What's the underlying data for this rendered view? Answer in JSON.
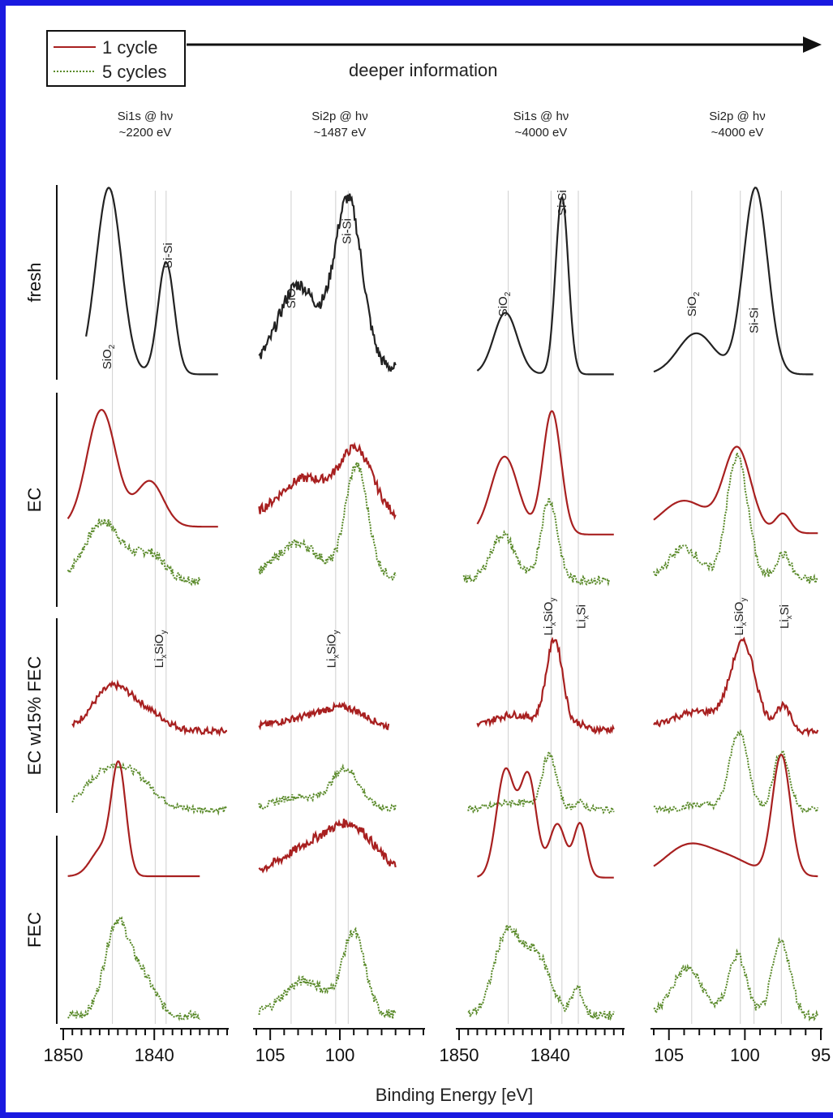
{
  "chart_data": {
    "type": "line",
    "title": "",
    "xlabel": "Binding Energy [eV]",
    "ylabel": "",
    "arrow_label": "deeper information",
    "legend": {
      "position": "top-left",
      "entries": [
        {
          "label": "1 cycle",
          "color": "#a82020",
          "style": "solid"
        },
        {
          "label": "5 cycles",
          "color": "#5a8a2a",
          "style": "dotted"
        }
      ]
    },
    "rows": [
      "fresh",
      "EC",
      "EC w15% FEC",
      "FEC"
    ],
    "row_label_prefix": {
      "fresh": "fresh",
      "EC": "EC",
      "EC w15% FEC": "EC w15% FEC",
      "FEC": "FEC"
    },
    "panels": [
      {
        "header_line1": "Si1s @ hν",
        "header_line2": "~2200 eV",
        "xlim": [
          1850,
          1832
        ],
        "ticks": [
          1850,
          1840
        ],
        "tick_labels": [
          "1850",
          "1840"
        ],
        "ref_lines": [
          1844.6,
          1839.9,
          1838.7
        ],
        "peak_labels": {
          "fresh": [
            {
              "text": "SiO",
              "sub": "2",
              "x": 1845.2
            },
            {
              "text": "Si-Si",
              "sub": "",
              "x": 1838.5
            }
          ],
          "EC w15% FEC": [
            {
              "text": "Li",
              "sub": "x",
              "after": "SiO",
              "sub2": "y",
              "x": 1839.5
            }
          ]
        },
        "traces": {
          "fresh": [
            {
              "cycle": "1",
              "x_start": 1847.5,
              "x_end": 1833.0,
              "base": 0.02,
              "peaks": [
                [
                  1845.0,
                  1.0,
                  1.4
                ],
                [
                  1838.7,
                  0.6,
                  0.9
                ]
              ]
            }
          ],
          "EC": [
            {
              "cycle": "1",
              "x_start": 1849.5,
              "x_end": 1833.0,
              "base": 0.08,
              "peaks": [
                [
                  1845.8,
                  0.9,
                  1.6
                ],
                [
                  1840.5,
                  0.35,
                  1.5
                ]
              ]
            },
            {
              "cycle": "5",
              "x_start": 1849.5,
              "x_end": 1835.0,
              "base": 0.02,
              "peaks": [
                [
                  1845.6,
                  0.45,
                  2.0
                ],
                [
                  1840.5,
                  0.2,
                  1.6
                ]
              ]
            }
          ],
          "EC w15% FEC": [
            {
              "cycle": "1",
              "x_start": 1849.0,
              "x_end": 1832.0,
              "base": 0.03,
              "peaks": [
                [
                  1844.6,
                  0.45,
                  2.2
                ],
                [
                  1840.5,
                  0.15,
                  2.0
                ]
              ]
            },
            {
              "cycle": "5",
              "x_start": 1849.0,
              "x_end": 1832.0,
              "base": 0.02,
              "peaks": [
                [
                  1845.0,
                  0.4,
                  2.4
                ],
                [
                  1841.5,
                  0.2,
                  2.0
                ]
              ]
            }
          ],
          "FEC": [
            {
              "cycle": "1",
              "x_start": 1849.5,
              "x_end": 1835.0,
              "base": 0.03,
              "peaks": [
                [
                  1843.9,
                  0.8,
                  0.8
                ],
                [
                  1845.8,
                  0.2,
                  1.2
                ]
              ]
            },
            {
              "cycle": "5",
              "x_start": 1849.5,
              "x_end": 1835.0,
              "base": 0.02,
              "peaks": [
                [
                  1844.2,
                  0.65,
                  1.3
                ],
                [
                  1841.5,
                  0.3,
                  1.5
                ]
              ]
            }
          ]
        }
      },
      {
        "header_line1": "Si2p @ hν",
        "header_line2": "~1487 eV",
        "xlim": [
          106,
          94
        ],
        "ticks": [
          105,
          100
        ],
        "tick_labels": [
          "105",
          "100"
        ],
        "ref_lines": [
          103.5,
          100.3,
          99.4
        ],
        "peak_labels": {
          "fresh": [
            {
              "text": "SiO",
              "sub": "2",
              "x": 103.5
            },
            {
              "text": "Si-Si",
              "sub": "",
              "x": 99.5
            }
          ],
          "EC w15% FEC": [
            {
              "text": "Li",
              "sub": "x",
              "after": "SiO",
              "sub2": "y",
              "x": 100.6
            }
          ]
        },
        "traces": {
          "fresh": [
            {
              "cycle": "1",
              "x_start": 105.8,
              "x_end": 96.0,
              "base": 0.05,
              "peaks": [
                [
                  103.0,
                  0.45,
                  1.4
                ],
                [
                  99.4,
                  0.9,
                  1.0
                ]
              ]
            }
          ],
          "EC": [
            {
              "cycle": "1",
              "x_start": 105.8,
              "x_end": 96.0,
              "base": 0.15,
              "peaks": [
                [
                  102.5,
                  0.3,
                  1.8
                ],
                [
                  98.8,
                  0.5,
                  1.2
                ]
              ]
            },
            {
              "cycle": "5",
              "x_start": 105.8,
              "x_end": 96.0,
              "base": 0.05,
              "peaks": [
                [
                  103.0,
                  0.25,
                  1.5
                ],
                [
                  98.8,
                  0.85,
                  0.8
                ]
              ]
            }
          ],
          "EC w15% FEC": [
            {
              "cycle": "1",
              "x_start": 105.8,
              "x_end": 96.5,
              "base": 0.05,
              "peaks": [
                [
                  102.0,
                  0.12,
                  2.5
                ],
                [
                  99.5,
                  0.15,
                  1.5
                ]
              ]
            },
            {
              "cycle": "5",
              "x_start": 105.8,
              "x_end": 96.0,
              "base": 0.03,
              "peaks": [
                [
                  103.0,
                  0.12,
                  1.5
                ],
                [
                  99.6,
                  0.4,
                  1.0
                ]
              ]
            }
          ],
          "FEC": [
            {
              "cycle": "1",
              "x_start": 105.8,
              "x_end": 96.0,
              "base": 0.05,
              "peaks": [
                [
                  102.0,
                  0.2,
                  2.0
                ],
                [
                  99.0,
                  0.3,
                  1.6
                ]
              ]
            },
            {
              "cycle": "5",
              "x_start": 105.8,
              "x_end": 96.0,
              "base": 0.03,
              "peaks": [
                [
                  102.5,
                  0.25,
                  1.5
                ],
                [
                  99.0,
                  0.6,
                  0.8
                ]
              ]
            }
          ]
        }
      },
      {
        "header_line1": "Si1s @ hν",
        "header_line2": "~4000 eV",
        "xlim": [
          1850,
          1832
        ],
        "ticks": [
          1850,
          1840
        ],
        "tick_labels": [
          "1850",
          "1840"
        ],
        "ref_lines": [
          1844.6,
          1839.9,
          1838.7,
          1836.9
        ],
        "peak_labels": {
          "fresh": [
            {
              "text": "SiO",
              "sub": "2",
              "x": 1845.2
            },
            {
              "text": "Si-Si",
              "sub": "",
              "x": 1838.7
            }
          ],
          "EC w15% FEC": [
            {
              "text": "Li",
              "sub": "x",
              "after": "SiO",
              "sub2": "y",
              "x": 1840.2
            },
            {
              "text": "Li",
              "sub": "x",
              "after": "Si",
              "sub2": "",
              "x": 1836.6
            }
          ]
        },
        "traces": {
          "fresh": [
            {
              "cycle": "1",
              "x_start": 1848.0,
              "x_end": 1833.0,
              "base": 0.02,
              "peaks": [
                [
                  1844.9,
                  0.33,
                  1.3
                ],
                [
                  1838.7,
                  0.95,
                  0.7
                ]
              ]
            }
          ],
          "EC": [
            {
              "cycle": "1",
              "x_start": 1848.0,
              "x_end": 1833.0,
              "base": 0.02,
              "peaks": [
                [
                  1845.0,
                  0.6,
                  1.5
                ],
                [
                  1839.8,
                  0.95,
                  1.0
                ]
              ]
            },
            {
              "cycle": "5",
              "x_start": 1849.5,
              "x_end": 1833.5,
              "base": 0.02,
              "peaks": [
                [
                  1845.2,
                  0.35,
                  1.3
                ],
                [
                  1840.1,
                  0.62,
                  0.9
                ]
              ]
            }
          ],
          "EC w15% FEC": [
            {
              "cycle": "1",
              "x_start": 1848.0,
              "x_end": 1833.0,
              "base": 0.05,
              "peaks": [
                [
                  1844.0,
                  0.15,
                  2.5
                ],
                [
                  1839.5,
                  0.9,
                  0.9
                ],
                [
                  1836.8,
                  0.05,
                  0.6
                ]
              ]
            },
            {
              "cycle": "5",
              "x_start": 1849.0,
              "x_end": 1833.0,
              "base": 0.02,
              "peaks": [
                [
                  1844.0,
                  0.07,
                  2.0
                ],
                [
                  1840.1,
                  0.55,
                  0.8
                ],
                [
                  1836.8,
                  0.07,
                  0.6
                ]
              ]
            }
          ],
          "FEC": [
            {
              "cycle": "1",
              "x_start": 1848.0,
              "x_end": 1833.0,
              "base": 0.02,
              "peaks": [
                [
                  1844.9,
                  0.8,
                  1.0
                ],
                [
                  1842.4,
                  0.75,
                  0.9
                ],
                [
                  1839.2,
                  0.4,
                  0.9
                ],
                [
                  1836.7,
                  0.4,
                  0.7
                ]
              ]
            },
            {
              "cycle": "5",
              "x_start": 1849.0,
              "x_end": 1833.0,
              "base": 0.02,
              "peaks": [
                [
                  1844.8,
                  0.6,
                  1.4
                ],
                [
                  1841.5,
                  0.45,
                  1.5
                ],
                [
                  1837.0,
                  0.2,
                  0.6
                ]
              ]
            }
          ]
        }
      },
      {
        "header_line1": "Si2p @ hν",
        "header_line2": "~4000 eV",
        "xlim": [
          106,
          95
        ],
        "ticks": [
          105,
          100,
          95
        ],
        "tick_labels": [
          "105",
          "100",
          "95"
        ],
        "ref_lines": [
          103.5,
          100.3,
          99.4,
          97.6
        ],
        "peak_labels": {
          "fresh": [
            {
              "text": "SiO",
              "sub": "2",
              "x": 103.5
            },
            {
              "text": "Si-Si",
              "sub": "",
              "x": 99.4
            }
          ],
          "EC w15% FEC": [
            {
              "text": "Li",
              "sub": "x",
              "after": "SiO",
              "sub2": "y",
              "x": 100.4
            },
            {
              "text": "Li",
              "sub": "x",
              "after": "Si",
              "sub2": "",
              "x": 97.4
            }
          ]
        },
        "traces": {
          "fresh": [
            {
              "cycle": "1",
              "x_start": 106.0,
              "x_end": 95.5,
              "base": 0.02,
              "peaks": [
                [
                  103.2,
                  0.22,
                  1.2
                ],
                [
                  99.3,
                  1.0,
                  0.8
                ]
              ]
            }
          ],
          "EC": [
            {
              "cycle": "1",
              "x_start": 106.0,
              "x_end": 95.2,
              "base": 0.03,
              "peaks": [
                [
                  104.0,
                  0.25,
                  1.5
                ],
                [
                  100.5,
                  0.65,
                  0.9
                ],
                [
                  97.5,
                  0.15,
                  0.5
                ]
              ]
            },
            {
              "cycle": "5",
              "x_start": 106.0,
              "x_end": 95.2,
              "base": 0.02,
              "peaks": [
                [
                  104.0,
                  0.25,
                  1.0
                ],
                [
                  100.5,
                  0.95,
                  0.7
                ],
                [
                  97.5,
                  0.2,
                  0.5
                ]
              ]
            }
          ],
          "EC w15% FEC": [
            {
              "cycle": "1",
              "x_start": 106.0,
              "x_end": 95.2,
              "base": 0.03,
              "peaks": [
                [
                  103.0,
                  0.2,
                  2.0
                ],
                [
                  100.1,
                  0.85,
                  0.8
                ],
                [
                  97.5,
                  0.25,
                  0.5
                ]
              ]
            },
            {
              "cycle": "5",
              "x_start": 106.0,
              "x_end": 95.2,
              "base": 0.02,
              "peaks": [
                [
                  103.0,
                  0.05,
                  1.0
                ],
                [
                  100.4,
                  0.8,
                  0.6
                ],
                [
                  97.6,
                  0.6,
                  0.5
                ]
              ]
            }
          ],
          "FEC": [
            {
              "cycle": "1",
              "x_start": 106.0,
              "x_end": 95.2,
              "base": 0.03,
              "peaks": [
                [
                  103.8,
                  0.22,
                  1.5
                ],
                [
                  101.0,
                  0.12,
                  1.5
                ],
                [
                  97.6,
                  0.9,
                  0.6
                ]
              ]
            },
            {
              "cycle": "5",
              "x_start": 106.0,
              "x_end": 95.2,
              "base": 0.02,
              "peaks": [
                [
                  103.8,
                  0.35,
                  1.0
                ],
                [
                  100.5,
                  0.45,
                  0.6
                ],
                [
                  97.6,
                  0.55,
                  0.6
                ]
              ]
            }
          ]
        }
      }
    ]
  }
}
